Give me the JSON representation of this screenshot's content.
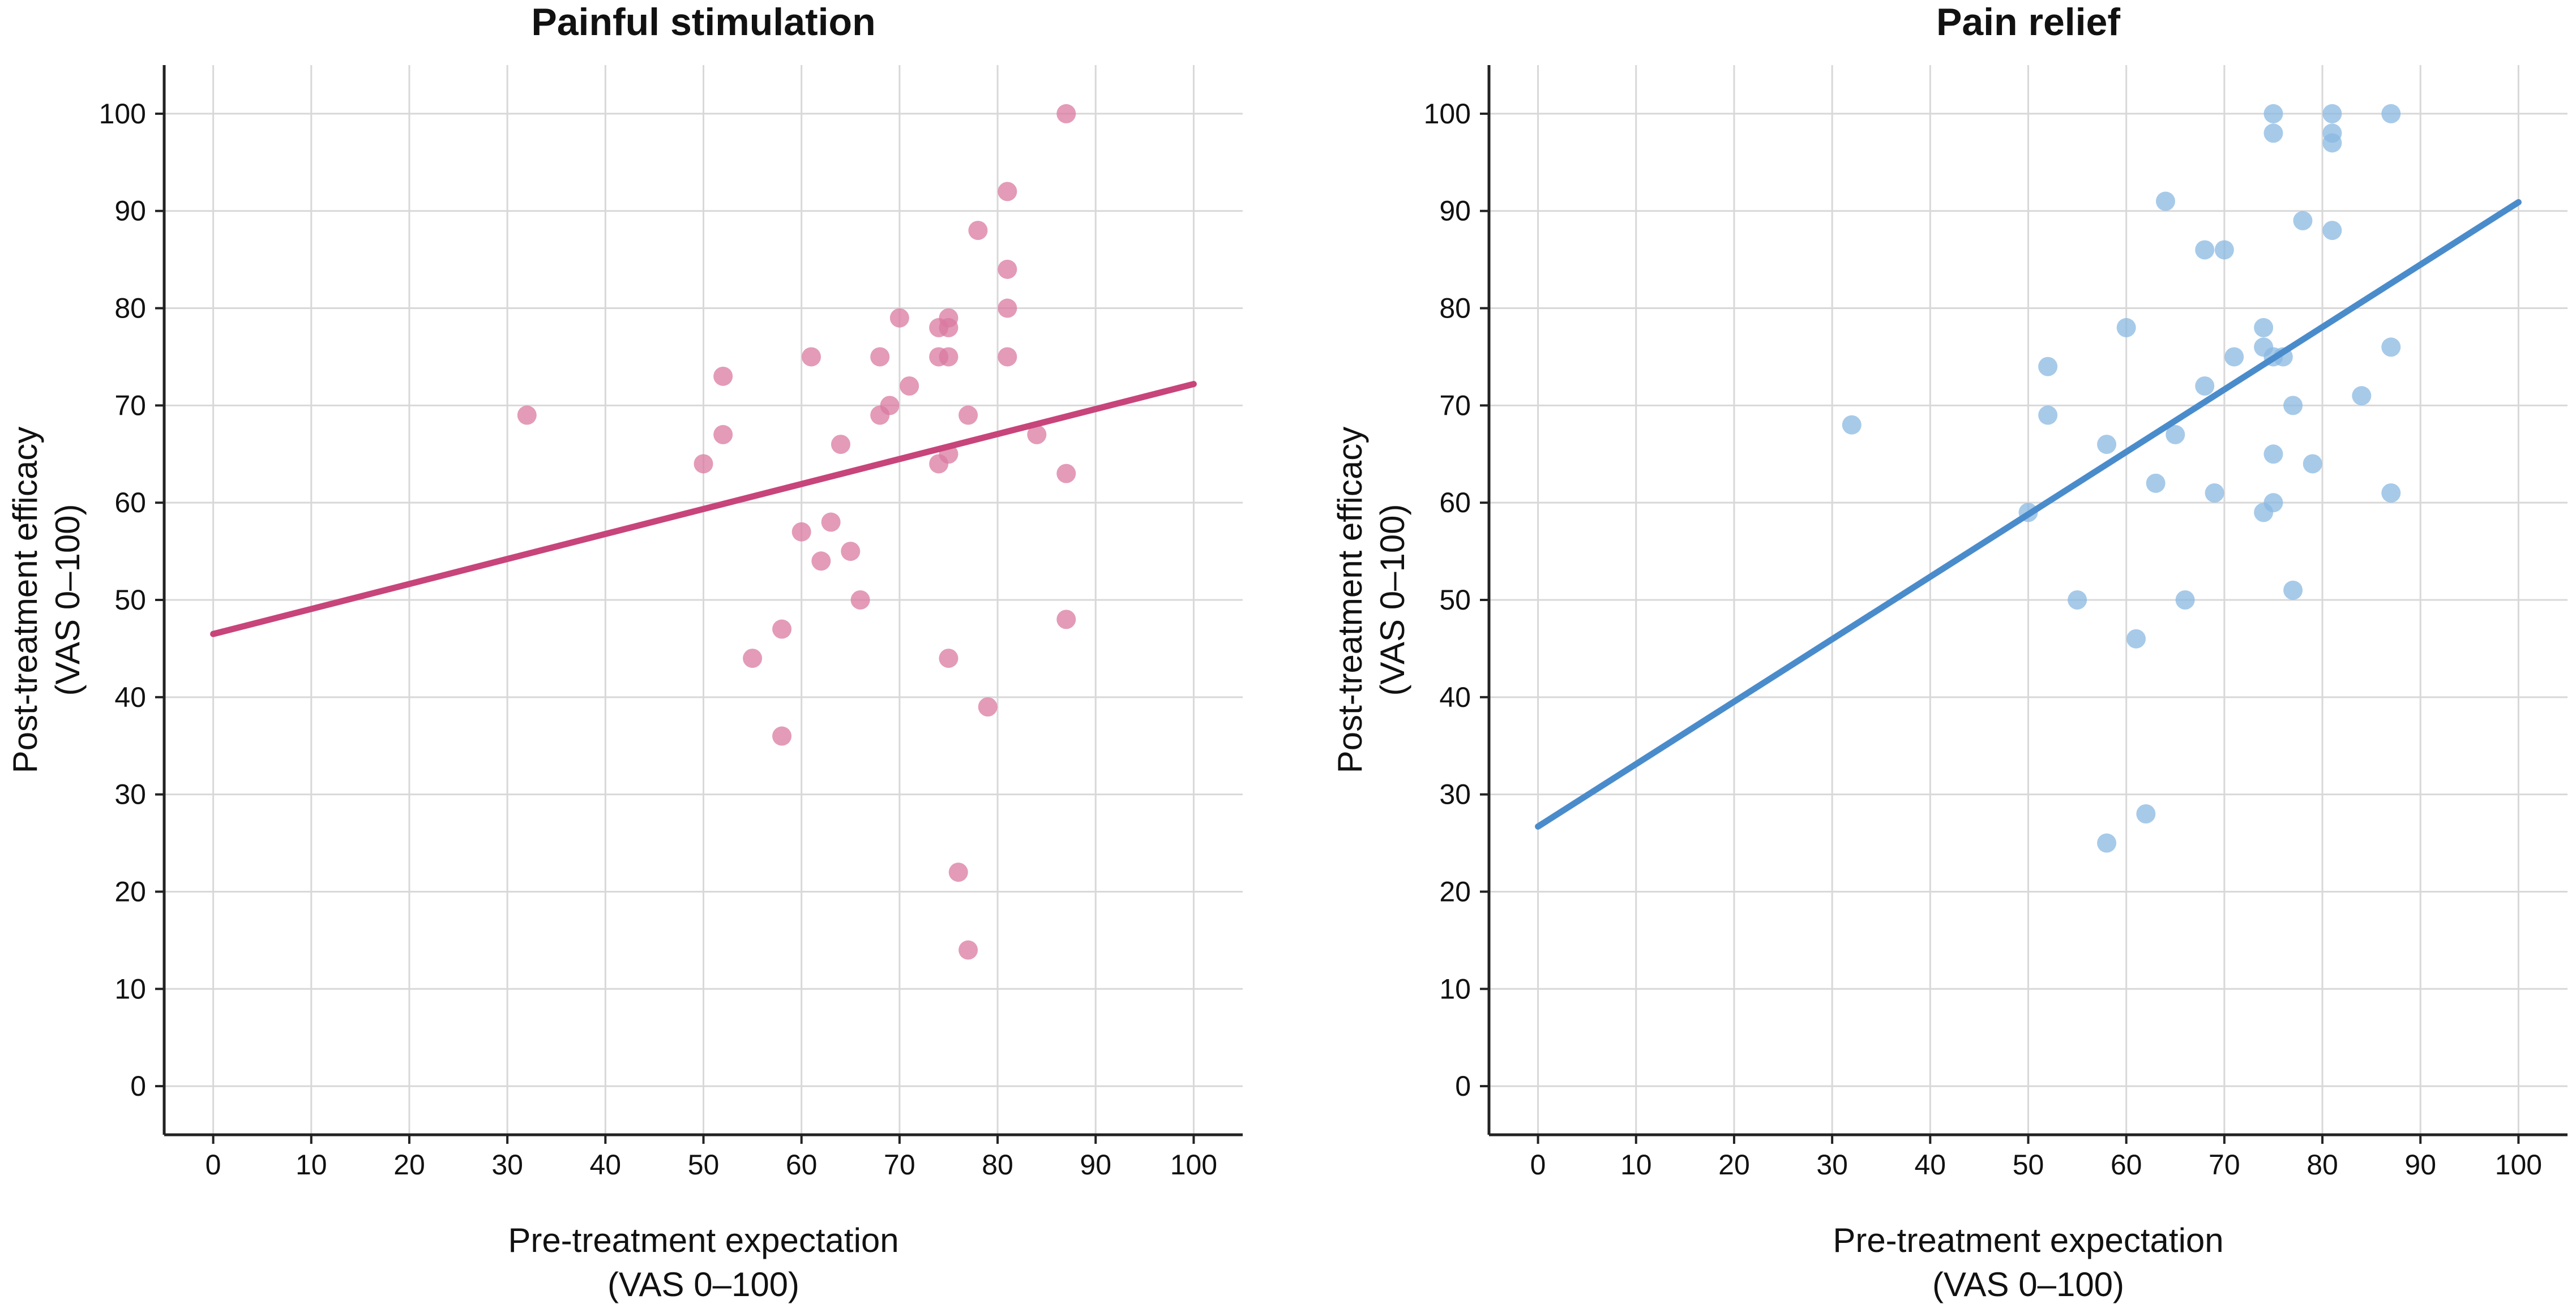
{
  "chart_data": [
    {
      "type": "scatter",
      "title": "Painful stimulation",
      "xlabel_lines": [
        "Pre-treatment expectation",
        "(VAS 0–100)"
      ],
      "ylabel_lines": [
        "Post-treatment efficacy",
        "(VAS 0–100)"
      ],
      "xlim": [
        -5,
        105
      ],
      "ylim": [
        -5,
        105
      ],
      "xticks": [
        0,
        10,
        20,
        30,
        40,
        50,
        60,
        70,
        80,
        90,
        100
      ],
      "yticks": [
        0,
        10,
        20,
        30,
        40,
        50,
        60,
        70,
        80,
        90,
        100
      ],
      "grid": true,
      "point_color": "#d97aa0",
      "line_color": "#c7457a",
      "regression_line": {
        "x": [
          0,
          100
        ],
        "y": [
          46.5,
          72.2
        ]
      },
      "points": [
        {
          "x": 32,
          "y": 69
        },
        {
          "x": 50,
          "y": 64
        },
        {
          "x": 52,
          "y": 73
        },
        {
          "x": 52,
          "y": 67
        },
        {
          "x": 55,
          "y": 44
        },
        {
          "x": 58,
          "y": 47
        },
        {
          "x": 58,
          "y": 36
        },
        {
          "x": 60,
          "y": 57
        },
        {
          "x": 61,
          "y": 75
        },
        {
          "x": 62,
          "y": 54
        },
        {
          "x": 63,
          "y": 58
        },
        {
          "x": 64,
          "y": 66
        },
        {
          "x": 65,
          "y": 55
        },
        {
          "x": 66,
          "y": 50
        },
        {
          "x": 68,
          "y": 75
        },
        {
          "x": 68,
          "y": 69
        },
        {
          "x": 69,
          "y": 70
        },
        {
          "x": 70,
          "y": 79
        },
        {
          "x": 71,
          "y": 72
        },
        {
          "x": 74,
          "y": 78
        },
        {
          "x": 74,
          "y": 75
        },
        {
          "x": 74,
          "y": 64
        },
        {
          "x": 75,
          "y": 79
        },
        {
          "x": 75,
          "y": 78
        },
        {
          "x": 75,
          "y": 75
        },
        {
          "x": 75,
          "y": 65
        },
        {
          "x": 75,
          "y": 44
        },
        {
          "x": 76,
          "y": 22
        },
        {
          "x": 77,
          "y": 69
        },
        {
          "x": 77,
          "y": 14
        },
        {
          "x": 78,
          "y": 88
        },
        {
          "x": 79,
          "y": 39
        },
        {
          "x": 81,
          "y": 92
        },
        {
          "x": 81,
          "y": 84
        },
        {
          "x": 81,
          "y": 80
        },
        {
          "x": 81,
          "y": 75
        },
        {
          "x": 84,
          "y": 67
        },
        {
          "x": 87,
          "y": 100
        },
        {
          "x": 87,
          "y": 63
        },
        {
          "x": 87,
          "y": 48
        }
      ]
    },
    {
      "type": "scatter",
      "title": "Pain relief",
      "xlabel_lines": [
        "Pre-treatment expectation",
        "(VAS 0–100)"
      ],
      "ylabel_lines": [
        "Post-treatment efficacy",
        "(VAS 0–100)"
      ],
      "xlim": [
        -5,
        105
      ],
      "ylim": [
        -5,
        105
      ],
      "xticks": [
        0,
        10,
        20,
        30,
        40,
        50,
        60,
        70,
        80,
        90,
        100
      ],
      "yticks": [
        0,
        10,
        20,
        30,
        40,
        50,
        60,
        70,
        80,
        90,
        100
      ],
      "grid": true,
      "point_color": "#8ab8e2",
      "line_color": "#4a8ccb",
      "regression_line": {
        "x": [
          0,
          100
        ],
        "y": [
          26.7,
          90.9
        ]
      },
      "points": [
        {
          "x": 32,
          "y": 68
        },
        {
          "x": 50,
          "y": 59
        },
        {
          "x": 52,
          "y": 74
        },
        {
          "x": 52,
          "y": 69
        },
        {
          "x": 55,
          "y": 50
        },
        {
          "x": 58,
          "y": 66
        },
        {
          "x": 58,
          "y": 25
        },
        {
          "x": 60,
          "y": 78
        },
        {
          "x": 61,
          "y": 46
        },
        {
          "x": 62,
          "y": 28
        },
        {
          "x": 63,
          "y": 62
        },
        {
          "x": 64,
          "y": 91
        },
        {
          "x": 65,
          "y": 67
        },
        {
          "x": 66,
          "y": 50
        },
        {
          "x": 68,
          "y": 86
        },
        {
          "x": 68,
          "y": 72
        },
        {
          "x": 69,
          "y": 61
        },
        {
          "x": 70,
          "y": 86
        },
        {
          "x": 71,
          "y": 75
        },
        {
          "x": 74,
          "y": 78
        },
        {
          "x": 74,
          "y": 76
        },
        {
          "x": 74,
          "y": 59
        },
        {
          "x": 75,
          "y": 100
        },
        {
          "x": 75,
          "y": 98
        },
        {
          "x": 75,
          "y": 75
        },
        {
          "x": 75,
          "y": 65
        },
        {
          "x": 75,
          "y": 60
        },
        {
          "x": 76,
          "y": 75
        },
        {
          "x": 77,
          "y": 70
        },
        {
          "x": 77,
          "y": 51
        },
        {
          "x": 78,
          "y": 89
        },
        {
          "x": 79,
          "y": 64
        },
        {
          "x": 81,
          "y": 100
        },
        {
          "x": 81,
          "y": 98
        },
        {
          "x": 81,
          "y": 97
        },
        {
          "x": 81,
          "y": 88
        },
        {
          "x": 84,
          "y": 71
        },
        {
          "x": 87,
          "y": 100
        },
        {
          "x": 87,
          "y": 76
        },
        {
          "x": 87,
          "y": 61
        }
      ]
    }
  ]
}
